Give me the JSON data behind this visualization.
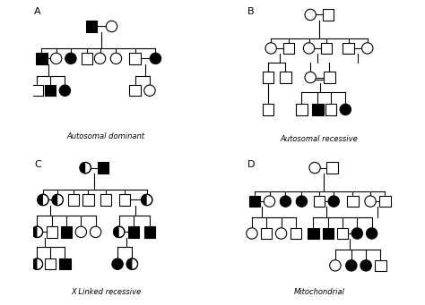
{
  "title_A": "Autosomal dominant",
  "title_B": "Autosomal recessive",
  "title_C": "X Linked recessive",
  "title_D": "Mitochondrial",
  "label_A": "A",
  "label_B": "B",
  "label_C": "C",
  "label_D": "D",
  "bg_color": "#ffffff",
  "line_color": "#000000",
  "fill_affected": "#000000",
  "fill_unaffected": "#ffffff",
  "r": 0.038,
  "lw": 0.8
}
